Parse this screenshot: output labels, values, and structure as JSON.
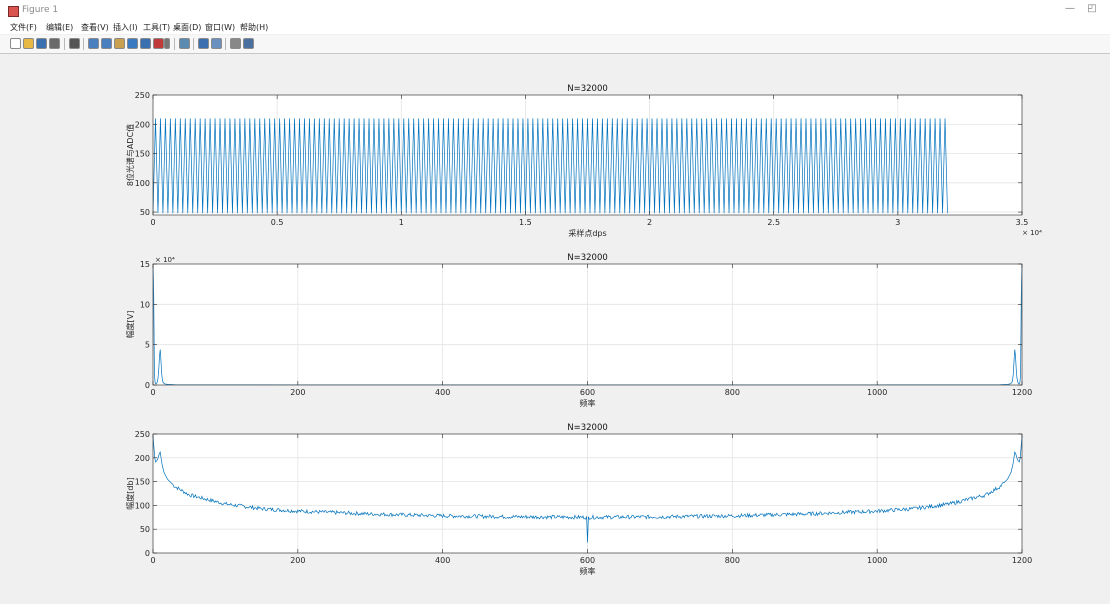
{
  "window": {
    "title": "Figure 1",
    "minimize_glyph": "—",
    "restore_glyph": "◰"
  },
  "menu": [
    "文件(F)",
    "编辑(E)",
    "查看(V)",
    "插入(I)",
    "工具(T)",
    "桌面(D)",
    "窗口(W)",
    "帮助(H)"
  ],
  "toolbar": {
    "icons": [
      "new-figure-icon",
      "open-file-icon",
      "save-icon",
      "print-icon",
      "select-arrow-icon",
      "zoom-in-icon",
      "zoom-out-icon",
      "pan-icon",
      "rotate-3d-icon",
      "data-cursor-icon",
      "brush-icon",
      "brush-dropdown-icon",
      "link-plot-icon",
      "colorbar-icon",
      "legend-icon",
      "hide-plot-tools-icon",
      "show-plot-tools-icon"
    ],
    "colors": [
      "#ffffff",
      "#e8b845",
      "#3a6fb0",
      "#6a6a6a",
      "#555555",
      "#4a7fc0",
      "#4a7fc0",
      "#c8a050",
      "#3a7ac0",
      "#3a6fb0",
      "#c03a3a",
      "#777777",
      "#5a8ab0",
      "#3a6fb0",
      "#6a90c0",
      "#888888",
      "#4a70a0"
    ]
  },
  "chart_data": [
    {
      "type": "line",
      "title": "N=32000",
      "xlabel": "采样点dps",
      "ylabel": "8位光谱与ADC值",
      "xlim": [
        0,
        35000
      ],
      "ylim": [
        45,
        250
      ],
      "x_exponent_label": "× 10⁴",
      "xticks": [
        0,
        5000,
        10000,
        15000,
        20000,
        25000,
        30000,
        35000
      ],
      "xticklabels": [
        "0",
        "0.5",
        "1",
        "1.5",
        "2",
        "2.5",
        "3",
        "3.5"
      ],
      "yticks": [
        50,
        100,
        150,
        200,
        250
      ],
      "yticklabels": [
        "50",
        "100",
        "150",
        "200",
        "250"
      ],
      "grid": true,
      "series_color": "#0072BD",
      "signal": {
        "x_start": 0,
        "x_end": 32000,
        "min": 48,
        "max": 210,
        "period": 200
      }
    },
    {
      "type": "line",
      "title": "N=32000",
      "xlabel": "频率",
      "ylabel": "幅度[V]",
      "xlim": [
        0,
        1200
      ],
      "ylim": [
        0,
        150000
      ],
      "y_exponent_label": "× 10⁴",
      "xticks": [
        0,
        200,
        400,
        600,
        800,
        1000,
        1200
      ],
      "xticklabels": [
        "0",
        "200",
        "400",
        "600",
        "800",
        "1000",
        "1200"
      ],
      "yticks": [
        0,
        50000,
        100000,
        150000
      ],
      "yticklabels": [
        "0",
        "5",
        "10",
        "15"
      ],
      "grid": true,
      "series_color": "#0072BD",
      "points": [
        [
          0,
          150000
        ],
        [
          1,
          110000
        ],
        [
          2,
          12000
        ],
        [
          3,
          2500
        ],
        [
          4,
          1500
        ],
        [
          5,
          2000
        ],
        [
          6,
          4000
        ],
        [
          7,
          9000
        ],
        [
          8,
          20000
        ],
        [
          9,
          36000
        ],
        [
          10,
          44000
        ],
        [
          11,
          30000
        ],
        [
          12,
          14000
        ],
        [
          13,
          6000
        ],
        [
          14,
          3000
        ],
        [
          16,
          1500
        ],
        [
          20,
          800
        ],
        [
          30,
          400
        ],
        [
          60,
          200
        ],
        [
          200,
          100
        ],
        [
          600,
          80
        ],
        [
          1000,
          100
        ],
        [
          1140,
          200
        ],
        [
          1170,
          400
        ],
        [
          1180,
          800
        ],
        [
          1184,
          1500
        ],
        [
          1186,
          3000
        ],
        [
          1187,
          6000
        ],
        [
          1188,
          14000
        ],
        [
          1189,
          30000
        ],
        [
          1190,
          44000
        ],
        [
          1191,
          36000
        ],
        [
          1192,
          20000
        ],
        [
          1193,
          9000
        ],
        [
          1194,
          4000
        ],
        [
          1195,
          2000
        ],
        [
          1196,
          1500
        ],
        [
          1197,
          2500
        ],
        [
          1198,
          12000
        ],
        [
          1199,
          110000
        ],
        [
          1200,
          150000
        ]
      ]
    },
    {
      "type": "line",
      "title": "N=32000",
      "xlabel": "频率",
      "ylabel": "幅度[db]",
      "xlim": [
        0,
        1200
      ],
      "ylim": [
        0,
        250
      ],
      "xticks": [
        0,
        200,
        400,
        600,
        800,
        1000,
        1200
      ],
      "xticklabels": [
        "0",
        "200",
        "400",
        "600",
        "800",
        "1000",
        "1200"
      ],
      "yticks": [
        0,
        50,
        100,
        150,
        200,
        250
      ],
      "yticklabels": [
        "0",
        "50",
        "100",
        "150",
        "200",
        "250"
      ],
      "grid": true,
      "series_color": "#0072BD",
      "envelope": [
        [
          0,
          245
        ],
        [
          3,
          190
        ],
        [
          6,
          195
        ],
        [
          9,
          210
        ],
        [
          10,
          212
        ],
        [
          12,
          190
        ],
        [
          15,
          170
        ],
        [
          20,
          155
        ],
        [
          30,
          140
        ],
        [
          50,
          122
        ],
        [
          100,
          103
        ],
        [
          150,
          93
        ],
        [
          200,
          88
        ],
        [
          300,
          82
        ],
        [
          400,
          78
        ],
        [
          500,
          76
        ],
        [
          600,
          75
        ],
        [
          700,
          76
        ],
        [
          800,
          78
        ],
        [
          900,
          82
        ],
        [
          1000,
          88
        ],
        [
          1050,
          93
        ],
        [
          1100,
          103
        ],
        [
          1150,
          122
        ],
        [
          1170,
          140
        ],
        [
          1180,
          155
        ],
        [
          1185,
          170
        ],
        [
          1188,
          190
        ],
        [
          1190,
          212
        ],
        [
          1191,
          210
        ],
        [
          1194,
          195
        ],
        [
          1197,
          190
        ],
        [
          1200,
          245
        ]
      ],
      "noise_amplitude": 4,
      "dip": {
        "x": 600,
        "y": 22
      }
    }
  ]
}
